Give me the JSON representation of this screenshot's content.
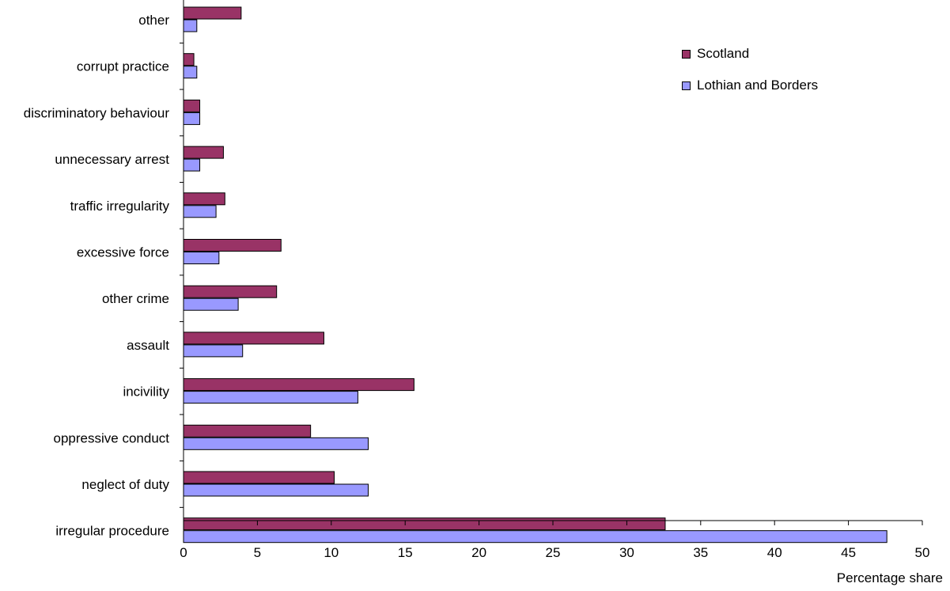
{
  "chart_data": {
    "type": "bar",
    "orientation": "horizontal",
    "categories": [
      "other",
      "corrupt practice",
      "discriminatory behaviour",
      "unnecessary arrest",
      "traffic irregularity",
      "excessive force",
      "other crime",
      "assault",
      "incivility",
      "oppressive conduct",
      "neglect of duty",
      "irregular procedure"
    ],
    "series": [
      {
        "name": "Scotland",
        "color": "#993366",
        "values": [
          3.9,
          0.7,
          1.1,
          2.7,
          2.8,
          6.6,
          6.3,
          9.5,
          15.6,
          8.6,
          10.2,
          32.6
        ]
      },
      {
        "name": "Lothian and Borders",
        "color": "#9999ff",
        "values": [
          0.9,
          0.9,
          1.1,
          1.1,
          2.2,
          2.4,
          3.7,
          4.0,
          11.8,
          12.5,
          12.5,
          47.6
        ]
      }
    ],
    "xlabel": "Percentage share",
    "ylabel": "",
    "title": "",
    "xlim": [
      0,
      50
    ],
    "xticks": [
      0,
      5,
      10,
      15,
      20,
      25,
      30,
      35,
      40,
      45,
      50
    ],
    "grid": false,
    "legend_position": "top-right"
  }
}
